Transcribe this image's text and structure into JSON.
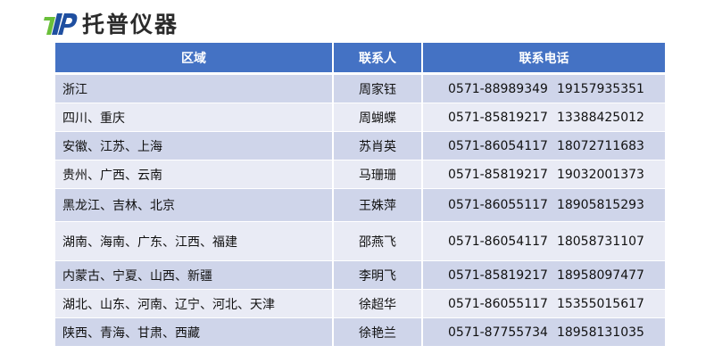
{
  "brand": {
    "name": "托普仪器",
    "colors": {
      "green": "#6abf3a",
      "blue": "#1f4fa0"
    }
  },
  "table": {
    "headers": [
      "区域",
      "联系人",
      "联系电话"
    ],
    "header_color": "#4472c4",
    "rows": [
      {
        "region": "浙江",
        "person": "周家钰",
        "landline": "0571-88989349",
        "mobile": "19157935351"
      },
      {
        "region": "四川、重庆",
        "person": "周蝴蝶",
        "landline": "0571-85819217",
        "mobile": "13388425012"
      },
      {
        "region": "安徽、江苏、上海",
        "person": "苏肖英",
        "landline": "0571-86054117",
        "mobile": "18072711683"
      },
      {
        "region": "贵州、广西、云南",
        "person": "马珊珊",
        "landline": "0571-85819217",
        "mobile": "19032001373"
      },
      {
        "region": "黑龙江、吉林、北京",
        "person": "王姝萍",
        "landline": "0571-86055117",
        "mobile": "18905815293"
      },
      {
        "region": "湖南、海南、广东、江西、福建",
        "person": "邵燕飞",
        "landline": "0571-86054117",
        "mobile": "18058731107"
      },
      {
        "region": "内蒙古、宁夏、山西、新疆",
        "person": "李明飞",
        "landline": "0571-85819217",
        "mobile": "18958097477"
      },
      {
        "region": "湖北、山东、河南、辽宁、河北、天津",
        "person": "徐超华",
        "landline": "0571-86055117",
        "mobile": "15355015617"
      },
      {
        "region": "陕西、青海、甘肃、西藏",
        "person": "徐艳兰",
        "landline": "0571-87755734",
        "mobile": "18958131035"
      }
    ]
  }
}
